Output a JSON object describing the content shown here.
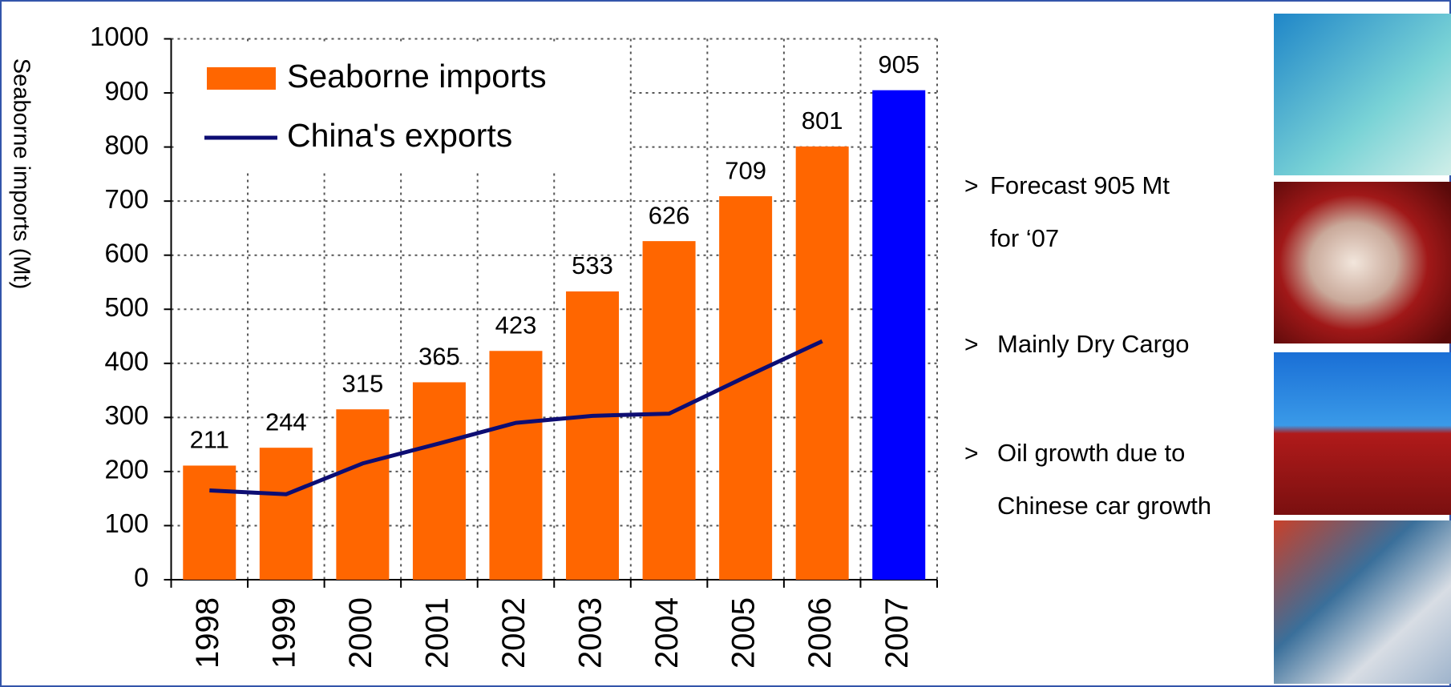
{
  "chart_data": {
    "type": "bar",
    "y_label": "Seaborne imports (Mt)",
    "categories": [
      "1998",
      "1999",
      "2000",
      "2001",
      "2002",
      "2003",
      "2004",
      "2005",
      "2006",
      "2007"
    ],
    "series": [
      {
        "name": "Seaborne imports",
        "type": "bar",
        "color": "#ff6600",
        "colors": [
          "#ff6600",
          "#ff6600",
          "#ff6600",
          "#ff6600",
          "#ff6600",
          "#ff6600",
          "#ff6600",
          "#ff6600",
          "#ff6600",
          "#0000ff"
        ],
        "values": [
          211,
          244,
          315,
          365,
          423,
          533,
          626,
          709,
          801,
          905
        ]
      },
      {
        "name": "China's exports",
        "type": "line",
        "color": "#0d0d73",
        "values": [
          165,
          158,
          215,
          252,
          290,
          303,
          307,
          375,
          441,
          null
        ]
      }
    ],
    "ylim": [
      0,
      1000
    ],
    "yticks": [
      0,
      100,
      200,
      300,
      400,
      500,
      600,
      700,
      800,
      900,
      1000
    ],
    "grid": true,
    "legend": "top-left"
  },
  "bullets": {
    "marker": ">",
    "items": [
      [
        "Forecast 905 Mt",
        "for ‘07"
      ],
      [
        "Mainly Dry Cargo"
      ],
      [
        "Oil growth due to",
        "Chinese car growth"
      ]
    ]
  }
}
